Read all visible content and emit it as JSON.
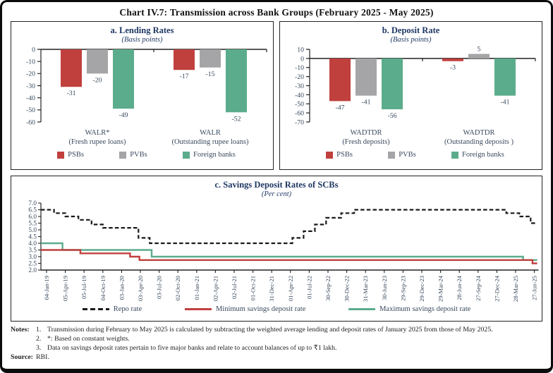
{
  "title": "Chart IV.7: Transmission across Bank Groups (February 2025 - May 2025)",
  "colors": {
    "psbs": "#C0403E",
    "pvbs": "#A5A5A7",
    "foreign_banks": "#5BAC8C",
    "repo_line": "#1A1A1A",
    "min_savings_line": "#C0403E",
    "max_savings_line": "#5BAC8C",
    "heading_text": "#1F3864",
    "body_text": "#3A4A5E"
  },
  "chart_data": [
    {
      "id": "lending_rates",
      "type": "bar",
      "title": "a. Lending Rates",
      "subtitle": "(Basis points)",
      "ylim": [
        -60,
        0
      ],
      "yticks": [
        0,
        -10,
        -20,
        -30,
        -40,
        -50,
        -60
      ],
      "categories": [
        {
          "label": "WALR*",
          "sublabel": "(Fresh rupee loans)"
        },
        {
          "label": "WALR",
          "sublabel": "(Outstanding rupee loans)"
        }
      ],
      "series": [
        {
          "name": "PSBs",
          "color_key": "psbs",
          "values": [
            -31,
            -17
          ]
        },
        {
          "name": "PVBs",
          "color_key": "pvbs",
          "values": [
            -20,
            -15
          ]
        },
        {
          "name": "Foreign banks",
          "color_key": "foreign_banks",
          "values": [
            -49,
            -52
          ]
        }
      ]
    },
    {
      "id": "deposit_rate",
      "type": "bar",
      "title": "b. Deposit Rate",
      "subtitle": "(Basis points)",
      "ylim": [
        -70,
        10
      ],
      "yticks": [
        10,
        0,
        -10,
        -20,
        -30,
        -40,
        -50,
        -60,
        -70
      ],
      "categories": [
        {
          "label": "WADTDR",
          "sublabel": "(Fresh deposits)"
        },
        {
          "label": "WADTDR",
          "sublabel": "(Outstanding deposits )"
        }
      ],
      "series": [
        {
          "name": "PSBs",
          "color_key": "psbs",
          "values": [
            -47,
            -3
          ]
        },
        {
          "name": "PVBs",
          "color_key": "pvbs",
          "values": [
            -41,
            5
          ]
        },
        {
          "name": "Foreign banks",
          "color_key": "foreign_banks",
          "values": [
            -56,
            -41
          ]
        }
      ]
    },
    {
      "id": "savings_deposit_rates",
      "type": "line",
      "title": "c. Savings Deposit Rates of SCBs",
      "subtitle": "(Per cent)",
      "ylim": [
        2.0,
        7.0
      ],
      "ytick_step": 0.5,
      "x_labels": [
        "04-Jan-19",
        "05-Apr-19",
        "05-Jul-19",
        "04-Oct-19",
        "03-Jan-20",
        "03-Apr-20",
        "03-Jul-20",
        "02-Oct-20",
        "01-Jan-21",
        "02-Apr-21",
        "02-Jul-21",
        "01-Oct-21",
        "31-Dec-21",
        "01-Apr-22",
        "01-Jul-22",
        "30-Sep-22",
        "30-Dec-22",
        "31-Mar-23",
        "30-Jun-23",
        "29-Sep-23",
        "29-Dec-23",
        "29-Mar-24",
        "28-Jun-24",
        "27-Sep-24",
        "27-Dec-24",
        "28-Mar-25",
        "27-Jun-25"
      ],
      "series": [
        {
          "name": "Maximum savings deposit rate",
          "style": "solid",
          "color_key": "max_savings_line",
          "steps": [
            [
              0,
              4.0
            ],
            [
              0.85,
              3.5
            ],
            [
              5.6,
              3.0
            ],
            [
              25.4,
              2.75
            ]
          ]
        },
        {
          "name": "Minimum savings deposit rate",
          "style": "solid",
          "color_key": "min_savings_line",
          "steps": [
            [
              0,
              3.5
            ],
            [
              1.8,
              3.25
            ],
            [
              4.45,
              3.0
            ],
            [
              4.95,
              2.75
            ],
            [
              25.9,
              2.5
            ]
          ]
        },
        {
          "name": "Repo rate",
          "style": "dashed",
          "color_key": "repo_line",
          "steps": [
            [
              0,
              6.5
            ],
            [
              0.4,
              6.25
            ],
            [
              1.0,
              6.0
            ],
            [
              1.7,
              5.75
            ],
            [
              2.4,
              5.4
            ],
            [
              3.0,
              5.15
            ],
            [
              4.9,
              4.4
            ],
            [
              5.5,
              4.0
            ],
            [
              13.1,
              4.4
            ],
            [
              13.7,
              4.9
            ],
            [
              14.3,
              5.4
            ],
            [
              14.9,
              5.9
            ],
            [
              15.7,
              6.25
            ],
            [
              16.4,
              6.5
            ],
            [
              24.5,
              6.25
            ],
            [
              25.2,
              6.0
            ],
            [
              25.8,
              5.5
            ]
          ]
        }
      ],
      "legend_order": [
        "Repo rate",
        "Minimum savings deposit rate",
        "Maximum savings deposit rate"
      ]
    }
  ],
  "notes": {
    "label": "Notes:",
    "items": [
      {
        "num": "1.",
        "text": "Transmission during February to May 2025 is calculated by subtracting the weighted average lending and deposit rates of January 2025 from those of May 2025."
      },
      {
        "num": "2.",
        "text": "*: Based on constant weights."
      },
      {
        "num": "3.",
        "text": "Data on savings deposit rates pertain to five major banks and relate to account balances of up to ₹1 lakh."
      }
    ],
    "source_label": "Source:",
    "source": "RBI."
  }
}
